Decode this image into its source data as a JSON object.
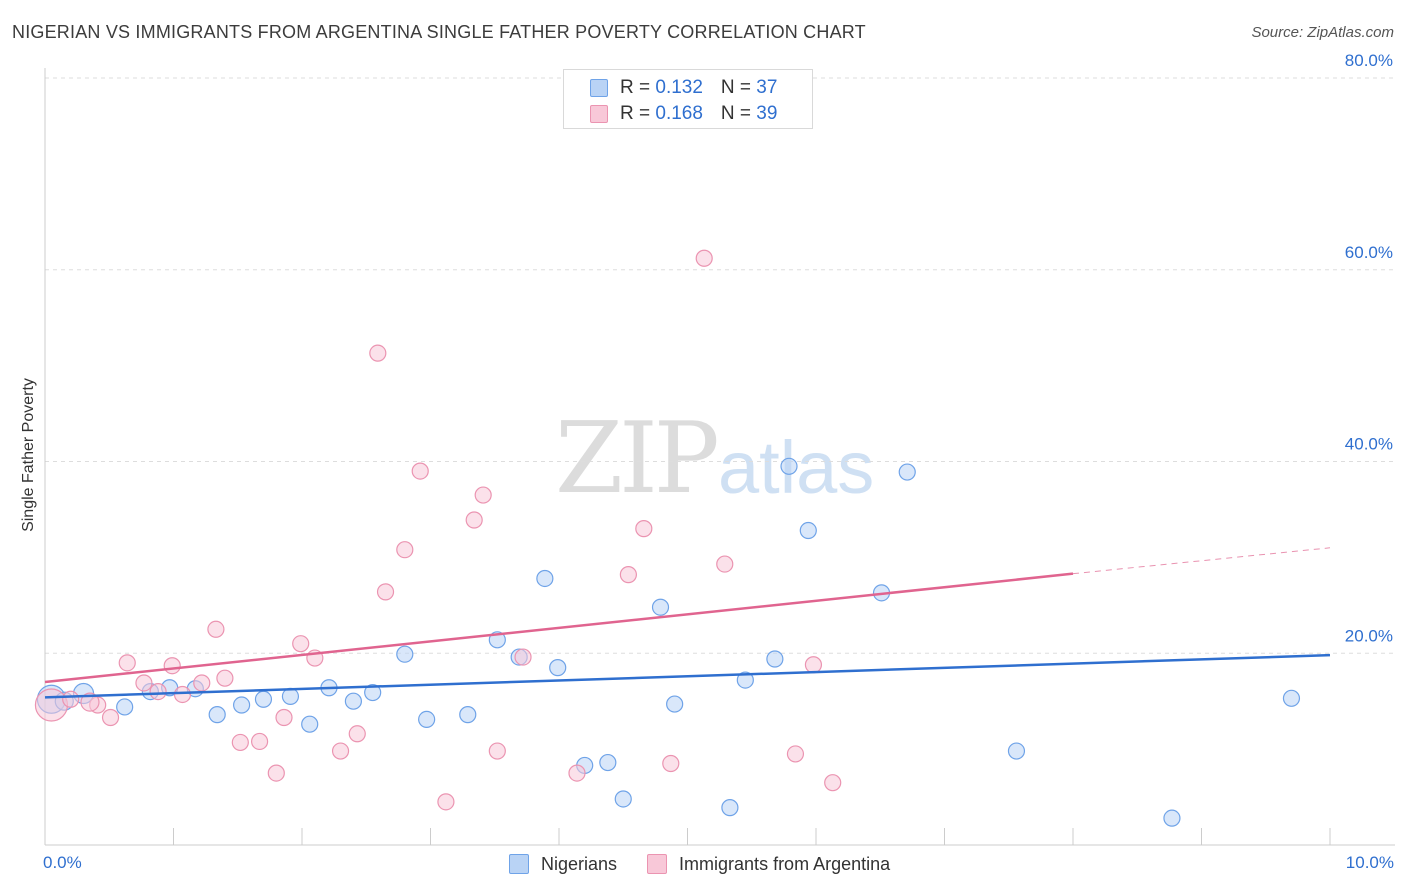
{
  "chart_data": {
    "type": "scatter",
    "title": "NIGERIAN VS IMMIGRANTS FROM ARGENTINA SINGLE FATHER POVERTY CORRELATION CHART",
    "source": "Source: ZipAtlas.com",
    "xlabel": "",
    "ylabel": "Single Father Poverty",
    "xlim": [
      0,
      10
    ],
    "ylim": [
      0,
      80
    ],
    "x_tick_labels": [
      "0.0%",
      "10.0%"
    ],
    "y_tick_labels": [
      "20.0%",
      "40.0%",
      "60.0%",
      "80.0%"
    ],
    "y_ticks": [
      20,
      40,
      60,
      80
    ],
    "grid": true,
    "legend_position": "top-center",
    "watermark": {
      "zip": "ZIP",
      "atlas": "atlas"
    },
    "series": [
      {
        "name": "Nigerians",
        "color": "#6fa3e8",
        "fill": "#b9d3f5",
        "line_color": "#2f6fcf",
        "R": "0.132",
        "N": "37",
        "trend": {
          "x": [
            0,
            10
          ],
          "y": [
            15.4,
            19.8
          ],
          "dashed_from": null
        },
        "points": [
          [
            0.05,
            15.2,
            14
          ],
          [
            0.3,
            15.8,
            10
          ],
          [
            0.62,
            14.4,
            8
          ],
          [
            0.82,
            16.0,
            8
          ],
          [
            0.97,
            16.4,
            8
          ],
          [
            1.17,
            16.3,
            8
          ],
          [
            1.34,
            13.6,
            8
          ],
          [
            1.53,
            14.6,
            8
          ],
          [
            1.7,
            15.2,
            8
          ],
          [
            1.91,
            15.5,
            8
          ],
          [
            2.06,
            12.6,
            8
          ],
          [
            2.21,
            16.4,
            8
          ],
          [
            2.4,
            15.0,
            8
          ],
          [
            2.55,
            15.9,
            8
          ],
          [
            2.8,
            19.9,
            8
          ],
          [
            2.97,
            13.1,
            8
          ],
          [
            3.29,
            13.6,
            8
          ],
          [
            3.52,
            21.4,
            8
          ],
          [
            3.69,
            19.6,
            8
          ],
          [
            3.89,
            27.8,
            8
          ],
          [
            3.99,
            18.5,
            8
          ],
          [
            4.2,
            8.3,
            8
          ],
          [
            4.38,
            8.6,
            8
          ],
          [
            4.5,
            4.8,
            8
          ],
          [
            4.79,
            24.8,
            8
          ],
          [
            4.9,
            14.7,
            8
          ],
          [
            5.33,
            3.9,
            8
          ],
          [
            5.45,
            17.2,
            8
          ],
          [
            5.68,
            19.4,
            8
          ],
          [
            5.79,
            39.5,
            8
          ],
          [
            5.94,
            32.8,
            8
          ],
          [
            6.51,
            26.3,
            8
          ],
          [
            6.71,
            38.9,
            8
          ],
          [
            7.56,
            9.8,
            8
          ],
          [
            8.77,
            2.8,
            8
          ],
          [
            9.7,
            15.3,
            8
          ],
          [
            0.15,
            15.0,
            9
          ]
        ]
      },
      {
        "name": "Immigrants from Argentina",
        "color": "#eb94b1",
        "fill": "#f8c8d8",
        "line_color": "#e0648f",
        "R": "0.168",
        "N": "39",
        "trend": {
          "x": [
            0,
            8.0,
            10
          ],
          "y": [
            17.0,
            28.3,
            31.0
          ],
          "dashed_from": 8.0
        },
        "points": [
          [
            0.05,
            14.6,
            16
          ],
          [
            0.2,
            15.2,
            8
          ],
          [
            0.41,
            14.6,
            8
          ],
          [
            0.51,
            13.3,
            8
          ],
          [
            0.64,
            19.0,
            8
          ],
          [
            0.77,
            16.9,
            8
          ],
          [
            0.88,
            16.0,
            8
          ],
          [
            0.99,
            18.7,
            8
          ],
          [
            1.07,
            15.7,
            8
          ],
          [
            1.22,
            16.9,
            8
          ],
          [
            1.33,
            22.5,
            8
          ],
          [
            1.4,
            17.4,
            8
          ],
          [
            1.52,
            10.7,
            8
          ],
          [
            1.67,
            10.8,
            8
          ],
          [
            1.8,
            7.5,
            8
          ],
          [
            1.86,
            13.3,
            8
          ],
          [
            1.99,
            21.0,
            8
          ],
          [
            2.1,
            19.5,
            8
          ],
          [
            2.3,
            9.8,
            8
          ],
          [
            2.43,
            11.6,
            8
          ],
          [
            2.59,
            51.3,
            8
          ],
          [
            2.65,
            26.4,
            8
          ],
          [
            2.8,
            30.8,
            8
          ],
          [
            2.92,
            39.0,
            8
          ],
          [
            3.12,
            4.5,
            8
          ],
          [
            3.34,
            33.9,
            8
          ],
          [
            3.41,
            36.5,
            8
          ],
          [
            3.52,
            9.8,
            8
          ],
          [
            3.72,
            19.6,
            8
          ],
          [
            4.14,
            7.5,
            8
          ],
          [
            4.54,
            28.2,
            8
          ],
          [
            4.66,
            33.0,
            8
          ],
          [
            4.87,
            8.5,
            8
          ],
          [
            5.13,
            61.2,
            8
          ],
          [
            5.29,
            29.3,
            8
          ],
          [
            5.84,
            9.5,
            8
          ],
          [
            5.98,
            18.8,
            8
          ],
          [
            6.13,
            6.5,
            8
          ],
          [
            0.35,
            14.9,
            9
          ]
        ]
      }
    ]
  }
}
